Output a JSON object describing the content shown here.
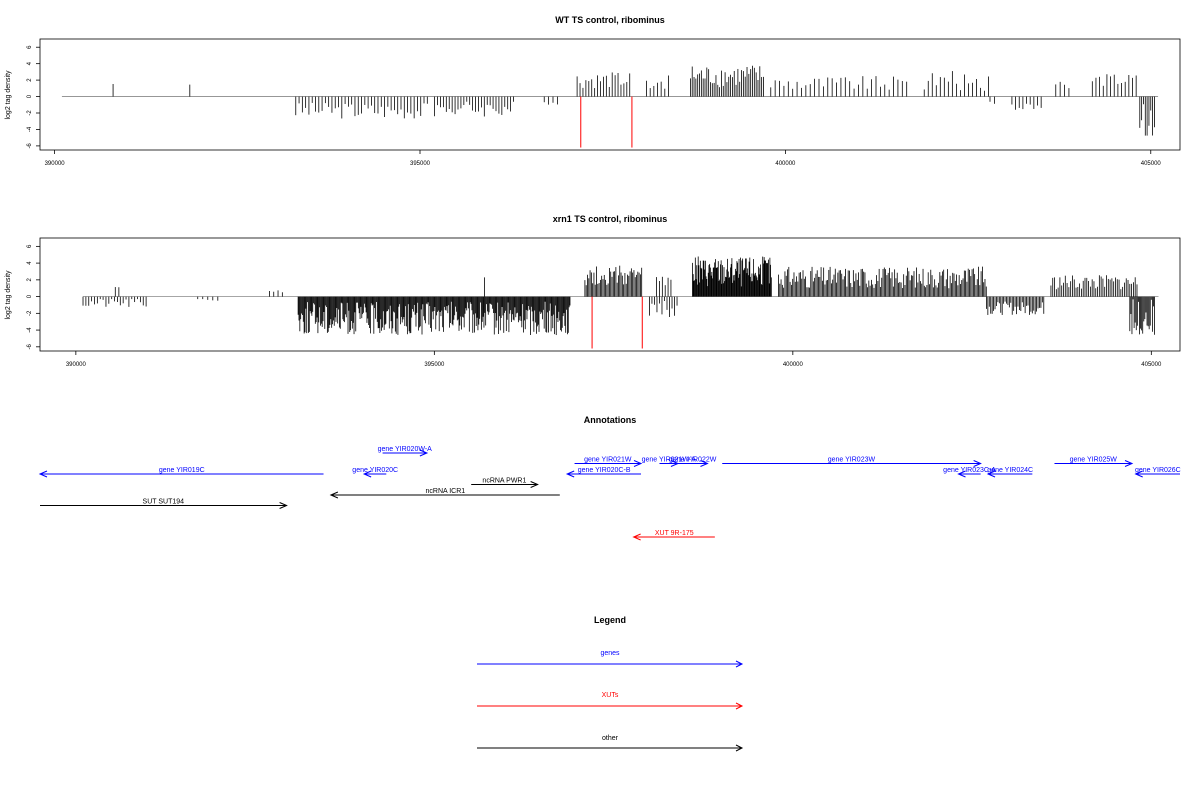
{
  "figure": {
    "panels": [
      {
        "id": "wt",
        "title": "WT TS control, ribominus",
        "ylabel": "log2 tag density"
      },
      {
        "id": "xrn1",
        "title": "xrn1 TS control, ribominus",
        "ylabel": "log2 tag density"
      }
    ],
    "annotations_title": "Annotations",
    "legend_title": "Legend",
    "legend": [
      {
        "label": "genes",
        "color": "#0000ff"
      },
      {
        "label": "XUTs",
        "color": "#ff0000"
      },
      {
        "label": "other",
        "color": "#000000"
      }
    ]
  },
  "chart_data": [
    {
      "type": "bar",
      "title": "WT TS control, ribominus",
      "xlabel": "",
      "ylabel": "log2 tag density",
      "xlim": [
        389800,
        405400
      ],
      "ylim": [
        -6.5,
        7
      ],
      "xticks": [
        390000,
        395000,
        400000,
        405000
      ],
      "yticks": [
        -6,
        -4,
        -2,
        0,
        2,
        4,
        6
      ],
      "grid": false,
      "baseline_segments": [
        [
          390100,
          405100
        ]
      ],
      "segments": [
        {
          "start": 390800,
          "end": 390800,
          "step": 20,
          "base": 1.5,
          "amp": 0.3,
          "seed": 1
        },
        {
          "start": 391850,
          "end": 391850,
          "step": 20,
          "base": 1.5,
          "amp": 0.2,
          "seed": 2
        },
        {
          "start": 393300,
          "end": 395100,
          "step": 45,
          "base": -1.7,
          "amp": 1.0,
          "seed": 3
        },
        {
          "start": 395200,
          "end": 396300,
          "step": 40,
          "base": -1.5,
          "amp": 1.0,
          "seed": 4
        },
        {
          "start": 396700,
          "end": 396900,
          "step": 60,
          "base": -1.0,
          "amp": 0.4,
          "seed": 5
        },
        {
          "start": 397150,
          "end": 397900,
          "step": 40,
          "base": 2.0,
          "amp": 1.0,
          "seed": 6
        },
        {
          "start": 398100,
          "end": 398400,
          "step": 50,
          "base": 1.8,
          "amp": 1.0,
          "seed": 7
        },
        {
          "start": 398700,
          "end": 399700,
          "step": 25,
          "base": 2.5,
          "amp": 1.4,
          "seed": 8
        },
        {
          "start": 399800,
          "end": 401700,
          "step": 60,
          "base": 1.6,
          "amp": 0.9,
          "seed": 9
        },
        {
          "start": 401900,
          "end": 402800,
          "step": 55,
          "base": 1.9,
          "amp": 1.2,
          "seed": 10
        },
        {
          "start": 402800,
          "end": 402900,
          "step": 60,
          "base": -0.8,
          "amp": 0.2,
          "seed": 11
        },
        {
          "start": 403100,
          "end": 403500,
          "step": 50,
          "base": -1.2,
          "amp": 0.5,
          "seed": 12
        },
        {
          "start": 403700,
          "end": 403900,
          "step": 60,
          "base": 1.4,
          "amp": 0.5,
          "seed": 13
        },
        {
          "start": 404200,
          "end": 404800,
          "step": 50,
          "base": 2.0,
          "amp": 0.8,
          "seed": 14
        },
        {
          "start": 404850,
          "end": 405050,
          "step": 25,
          "base": -2.8,
          "amp": 2.0,
          "seed": 15
        }
      ],
      "marks": [
        {
          "x": 397200,
          "y": -6.2,
          "color": "#ff0000"
        },
        {
          "x": 397900,
          "y": -6.2,
          "color": "#ff0000"
        }
      ]
    },
    {
      "type": "bar",
      "title": "xrn1 TS control, ribominus",
      "xlabel": "",
      "ylabel": "log2 tag density",
      "xlim": [
        389500,
        405400
      ],
      "ylim": [
        -6.5,
        7
      ],
      "xticks": [
        390000,
        395000,
        400000,
        405000
      ],
      "yticks": [
        -6,
        -4,
        -2,
        0,
        2,
        4,
        6
      ],
      "grid": false,
      "baseline_segments": [
        [
          390100,
          405100
        ]
      ],
      "segments": [
        {
          "start": 390100,
          "end": 391000,
          "step": 40,
          "base": -0.8,
          "amp": 0.6,
          "seed": 21
        },
        {
          "start": 390550,
          "end": 390600,
          "step": 50,
          "base": 1.3,
          "amp": 0.2,
          "seed": 22
        },
        {
          "start": 391700,
          "end": 392000,
          "step": 70,
          "base": -0.5,
          "amp": 0.3,
          "seed": 23
        },
        {
          "start": 392700,
          "end": 392900,
          "step": 60,
          "base": 0.5,
          "amp": 0.3,
          "seed": 24
        },
        {
          "start": 393100,
          "end": 396900,
          "step": 12,
          "base": -2.6,
          "amp": 2.0,
          "seed": 25
        },
        {
          "start": 395700,
          "end": 395700,
          "step": 20,
          "base": 2.3,
          "amp": 0.1,
          "seed": 26
        },
        {
          "start": 397100,
          "end": 397900,
          "step": 18,
          "base": 2.5,
          "amp": 1.2,
          "seed": 27
        },
        {
          "start": 398000,
          "end": 398400,
          "step": 35,
          "base": -1.5,
          "amp": 1.0,
          "seed": 28
        },
        {
          "start": 398100,
          "end": 398300,
          "step": 40,
          "base": 1.7,
          "amp": 0.7,
          "seed": 29
        },
        {
          "start": 398600,
          "end": 399700,
          "step": 10,
          "base": 3.0,
          "amp": 1.8,
          "seed": 30
        },
        {
          "start": 399800,
          "end": 402700,
          "step": 18,
          "base": 2.3,
          "amp": 1.3,
          "seed": 31
        },
        {
          "start": 402700,
          "end": 403500,
          "step": 20,
          "base": -1.4,
          "amp": 0.8,
          "seed": 32
        },
        {
          "start": 403600,
          "end": 404800,
          "step": 25,
          "base": 1.7,
          "amp": 0.9,
          "seed": 33
        },
        {
          "start": 404700,
          "end": 405050,
          "step": 15,
          "base": -2.5,
          "amp": 2.2,
          "seed": 34
        }
      ],
      "marks": [
        {
          "x": 397200,
          "y": -6.2,
          "color": "#ff0000"
        },
        {
          "x": 397900,
          "y": -6.2,
          "color": "#ff0000"
        }
      ]
    }
  ],
  "annotation_track": {
    "xlim": [
      389960,
      405400
    ],
    "features": [
      {
        "label": "gene YIR019C",
        "start": 389960,
        "end": 393800,
        "strand": "-",
        "row": 2,
        "color": "#0000ff"
      },
      {
        "label": "gene YIR020W-A",
        "start": 394600,
        "end": 395200,
        "strand": "+",
        "row": 0,
        "color": "#0000ff"
      },
      {
        "label": "gene YIR020C",
        "start": 394350,
        "end": 394650,
        "strand": "-",
        "row": 2,
        "color": "#0000ff"
      },
      {
        "label": "ncRNA PWR1",
        "start": 395800,
        "end": 396700,
        "strand": "+",
        "row": 3,
        "color": "#000000"
      },
      {
        "label": "ncRNA ICR1",
        "start": 393900,
        "end": 397000,
        "strand": "-",
        "row": 4,
        "color": "#000000"
      },
      {
        "label": "SUT SUT194",
        "start": 389960,
        "end": 393300,
        "strand": "+",
        "row": 5,
        "color": "#000000"
      },
      {
        "label": "gene YIR021W",
        "start": 397200,
        "end": 398100,
        "strand": "+",
        "row": 1,
        "color": "#0000ff"
      },
      {
        "label": "gene YIR020C-B",
        "start": 397100,
        "end": 398100,
        "strand": "-",
        "row": 2,
        "color": "#0000ff"
      },
      {
        "label": "gene YIR021W-A",
        "start": 398350,
        "end": 398600,
        "strand": "+",
        "row": 1,
        "color": "#0000ff"
      },
      {
        "label": "gene YIR022W",
        "start": 398600,
        "end": 399000,
        "strand": "+",
        "row": 1,
        "color": "#0000ff"
      },
      {
        "label": "gene YIR023W",
        "start": 399200,
        "end": 402700,
        "strand": "+",
        "row": 1,
        "color": "#0000ff"
      },
      {
        "label": "gene YIR023C-A",
        "start": 402400,
        "end": 402700,
        "strand": "-",
        "row": 2,
        "color": "#0000ff"
      },
      {
        "label": "gene YIR024C",
        "start": 402800,
        "end": 403400,
        "strand": "-",
        "row": 2,
        "color": "#0000ff"
      },
      {
        "label": "gene YIR025W",
        "start": 403700,
        "end": 404750,
        "strand": "+",
        "row": 1,
        "color": "#0000ff"
      },
      {
        "label": "gene YIR026C",
        "start": 404800,
        "end": 405400,
        "strand": "-",
        "row": 2,
        "color": "#0000ff"
      },
      {
        "label": "XUT 9R-175",
        "start": 398000,
        "end": 399100,
        "strand": "-",
        "row": 8,
        "color": "#ff0000"
      }
    ]
  }
}
